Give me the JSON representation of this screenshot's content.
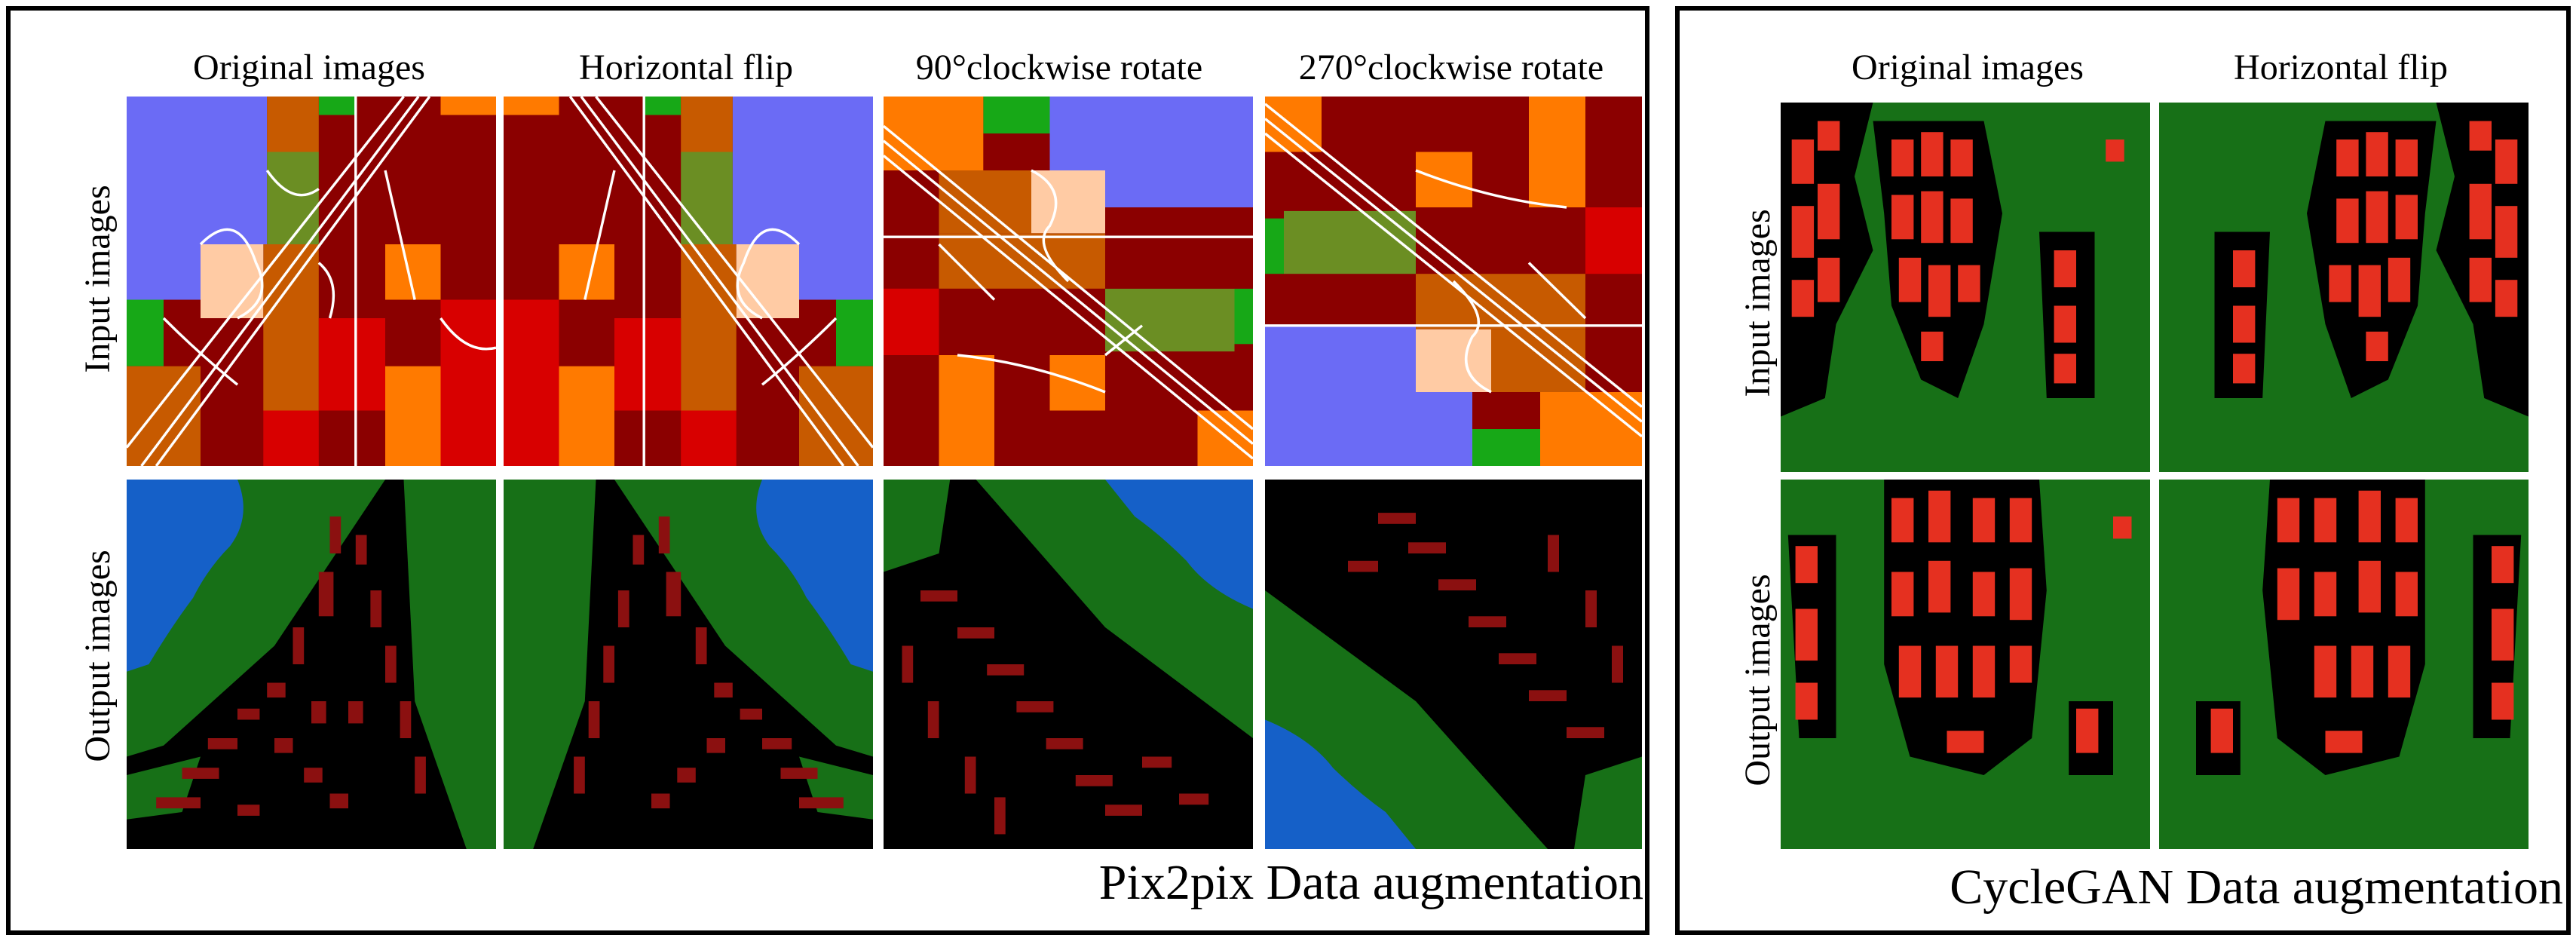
{
  "pix2pix": {
    "columns": [
      "Original images",
      "Horizontal flip",
      "90°clockwise rotate",
      "270°clockwise rotate"
    ],
    "rows": [
      "Input images",
      "Output images"
    ],
    "caption": "Pix2pix Data augmentation"
  },
  "cyclegan": {
    "columns": [
      "Original images",
      "Horizontal flip"
    ],
    "rows": [
      "Input images",
      "Output images"
    ],
    "caption": "CycleGAN Data augmentation"
  },
  "colors": {
    "lavender": "#6B6BF5",
    "dark_red": "#8B0000",
    "red": "#D80000",
    "orange": "#FF7A00",
    "rust": "#C75A00",
    "olive": "#6B8E23",
    "green": "#17A817",
    "peach": "#FFCBA4",
    "forest": "#177017",
    "blue": "#1560C8",
    "black": "#000000",
    "maroon": "#8B1010",
    "bright_red": "#E53020"
  }
}
